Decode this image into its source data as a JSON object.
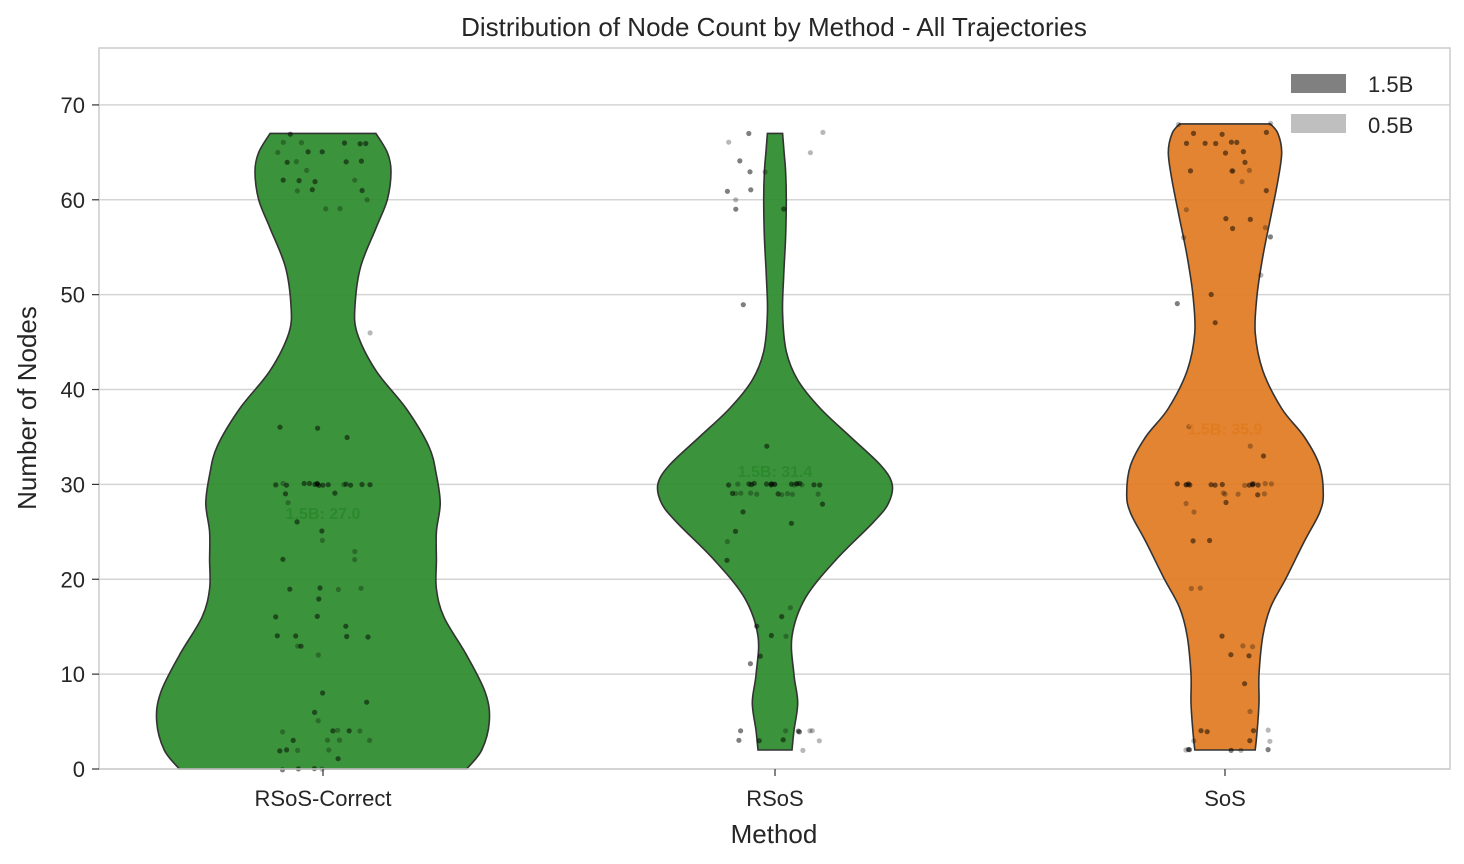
{
  "chart_data": {
    "type": "violin",
    "title": "Distribution of Node Count by Method - All Trajectories",
    "xlabel": "Method",
    "ylabel": "Number of Nodes",
    "ylim": [
      0,
      76
    ],
    "yticks": [
      0,
      10,
      20,
      30,
      40,
      50,
      60,
      70
    ],
    "grid": true,
    "legend": {
      "placement": "top-right",
      "entries": [
        {
          "label": "1.5B",
          "color": "#808080"
        },
        {
          "label": "0.5B",
          "color": "#bfbfbf"
        }
      ]
    },
    "categories": [
      "RSoS-Correct",
      "RSoS",
      "SoS"
    ],
    "violins": [
      {
        "category": "RSoS-Correct",
        "color": "#2a8a2a",
        "mean_label": "1.5B: 27.0",
        "mean_value": 27.0,
        "range": [
          0,
          67
        ],
        "density": [
          [
            0,
            0.38
          ],
          [
            2,
            0.42
          ],
          [
            5,
            0.44
          ],
          [
            8,
            0.43
          ],
          [
            12,
            0.38
          ],
          [
            16,
            0.32
          ],
          [
            19,
            0.3
          ],
          [
            22,
            0.3
          ],
          [
            25,
            0.3
          ],
          [
            28,
            0.31
          ],
          [
            31,
            0.3
          ],
          [
            34,
            0.28
          ],
          [
            38,
            0.22
          ],
          [
            42,
            0.14
          ],
          [
            46,
            0.09
          ],
          [
            49,
            0.085
          ],
          [
            53,
            0.1
          ],
          [
            57,
            0.14
          ],
          [
            60,
            0.17
          ],
          [
            63,
            0.18
          ],
          [
            65,
            0.17
          ],
          [
            67,
            0.14
          ]
        ],
        "points": [
          0,
          0,
          0,
          0,
          1,
          2,
          2,
          2,
          2,
          3,
          3,
          3,
          3,
          4,
          4,
          4,
          4,
          4,
          5,
          6,
          7,
          8,
          12,
          13,
          13,
          14,
          14,
          14,
          14,
          15,
          16,
          16,
          18,
          19,
          19,
          19,
          19,
          22,
          22,
          23,
          24,
          25,
          26,
          28,
          29,
          29,
          30,
          30,
          30,
          30,
          30,
          30,
          30,
          30,
          30,
          30,
          30,
          30,
          30,
          30,
          30,
          30,
          35,
          36,
          36,
          46,
          59,
          59,
          60,
          61,
          61,
          61,
          62,
          62,
          62,
          62,
          63,
          64,
          64,
          64,
          64,
          65,
          65,
          65,
          66,
          66,
          66,
          66,
          66,
          67
        ]
      },
      {
        "category": "RSoS",
        "color": "#2a8a2a",
        "mean_label": "1.5B: 31.4",
        "mean_value": 31.4,
        "range": [
          2,
          67
        ],
        "density": [
          [
            2,
            0.045
          ],
          [
            4,
            0.05
          ],
          [
            7,
            0.06
          ],
          [
            10,
            0.05
          ],
          [
            14,
            0.045
          ],
          [
            18,
            0.08
          ],
          [
            22,
            0.16
          ],
          [
            26,
            0.26
          ],
          [
            28,
            0.3
          ],
          [
            30,
            0.31
          ],
          [
            32,
            0.28
          ],
          [
            35,
            0.2
          ],
          [
            38,
            0.12
          ],
          [
            41,
            0.06
          ],
          [
            44,
            0.03
          ],
          [
            48,
            0.02
          ],
          [
            52,
            0.023
          ],
          [
            56,
            0.028
          ],
          [
            60,
            0.03
          ],
          [
            63,
            0.028
          ],
          [
            65,
            0.024
          ],
          [
            67,
            0.02
          ]
        ],
        "points": [
          2,
          3,
          3,
          3,
          3,
          4,
          4,
          4,
          4,
          4,
          4,
          11,
          12,
          14,
          14,
          15,
          16,
          17,
          22,
          24,
          25,
          26,
          27,
          28,
          29,
          29,
          29,
          29,
          29,
          29,
          29,
          29,
          29,
          29,
          30,
          30,
          30,
          30,
          30,
          30,
          30,
          30,
          30,
          30,
          30,
          30,
          30,
          30,
          30,
          30,
          30,
          30,
          30,
          34,
          49,
          59,
          59,
          60,
          61,
          61,
          63,
          63,
          64,
          65,
          66,
          67,
          67
        ]
      },
      {
        "category": "SoS",
        "color": "#e07a1f",
        "mean_label": "1.5B: 35.9",
        "mean_value": 35.9,
        "range": [
          2,
          68
        ],
        "density": [
          [
            2,
            0.08
          ],
          [
            4,
            0.085
          ],
          [
            7,
            0.09
          ],
          [
            10,
            0.09
          ],
          [
            14,
            0.1
          ],
          [
            17,
            0.12
          ],
          [
            20,
            0.16
          ],
          [
            24,
            0.21
          ],
          [
            27,
            0.25
          ],
          [
            29,
            0.26
          ],
          [
            32,
            0.25
          ],
          [
            35,
            0.21
          ],
          [
            38,
            0.15
          ],
          [
            42,
            0.1
          ],
          [
            46,
            0.08
          ],
          [
            50,
            0.085
          ],
          [
            54,
            0.1
          ],
          [
            58,
            0.12
          ],
          [
            62,
            0.14
          ],
          [
            65,
            0.15
          ],
          [
            67,
            0.14
          ],
          [
            68,
            0.12
          ]
        ],
        "points": [
          2,
          2,
          2,
          2,
          2,
          2,
          3,
          3,
          3,
          4,
          4,
          4,
          4,
          6,
          9,
          12,
          12,
          13,
          13,
          14,
          19,
          19,
          24,
          24,
          27,
          28,
          28,
          29,
          29,
          29,
          29,
          29,
          30,
          30,
          30,
          30,
          30,
          30,
          30,
          30,
          30,
          30,
          30,
          30,
          30,
          30,
          30,
          30,
          33,
          34,
          36,
          47,
          49,
          50,
          52,
          56,
          56,
          57,
          57,
          58,
          58,
          59,
          61,
          62,
          63,
          63,
          63,
          63,
          64,
          65,
          65,
          66,
          66,
          66,
          66,
          66,
          67,
          67,
          67,
          68,
          68
        ]
      }
    ]
  }
}
